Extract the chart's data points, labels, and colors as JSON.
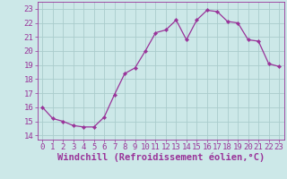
{
  "x": [
    0,
    1,
    2,
    3,
    4,
    5,
    6,
    7,
    8,
    9,
    10,
    11,
    12,
    13,
    14,
    15,
    16,
    17,
    18,
    19,
    20,
    21,
    22,
    23
  ],
  "y": [
    16.0,
    15.2,
    15.0,
    14.7,
    14.6,
    14.6,
    15.3,
    16.9,
    18.4,
    18.8,
    20.0,
    21.3,
    21.5,
    22.2,
    20.8,
    22.2,
    22.9,
    22.8,
    22.1,
    22.0,
    20.8,
    20.7,
    19.1,
    18.9
  ],
  "line_color": "#993399",
  "marker": "D",
  "marker_size": 2.2,
  "bg_color": "#cce8e8",
  "grid_color": "#aacccc",
  "xlabel": "Windchill (Refroidissement éolien,°C)",
  "xlabel_fontsize": 7.5,
  "xlabel_color": "#993399",
  "yticks": [
    14,
    15,
    16,
    17,
    18,
    19,
    20,
    21,
    22,
    23
  ],
  "xticks": [
    0,
    1,
    2,
    3,
    4,
    5,
    6,
    7,
    8,
    9,
    10,
    11,
    12,
    13,
    14,
    15,
    16,
    17,
    18,
    19,
    20,
    21,
    22,
    23
  ],
  "ylim": [
    13.7,
    23.5
  ],
  "xlim": [
    -0.5,
    23.5
  ],
  "tick_fontsize": 6.5,
  "tick_color": "#993399",
  "spine_color": "#993399",
  "linewidth": 0.9
}
